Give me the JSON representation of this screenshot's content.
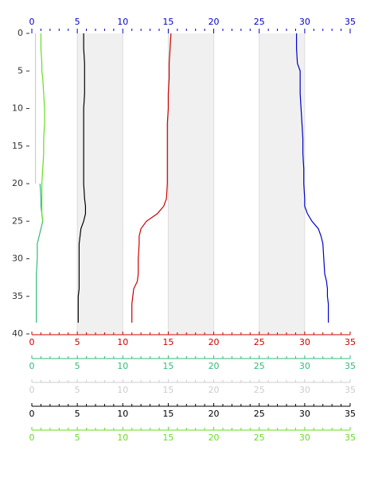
{
  "chart_data": {
    "type": "line",
    "depth": [
      0,
      2,
      4,
      5,
      6,
      8,
      10,
      12,
      14,
      16,
      18,
      20,
      22,
      23,
      24,
      25,
      26,
      27,
      28,
      30,
      32,
      33,
      34,
      35,
      36,
      38.5
    ],
    "ylim": [
      0,
      40
    ],
    "yticks": [
      0,
      5,
      10,
      15,
      20,
      25,
      30,
      35,
      40
    ],
    "y_inverted": true,
    "x_axes": [
      {
        "color": "#0000cc",
        "position": "top",
        "xlim": [
          0,
          35
        ],
        "xticks": [
          0,
          5,
          10,
          15,
          20,
          25,
          30,
          35
        ]
      },
      {
        "color": "#cc0000",
        "position": "bottom",
        "xlim": [
          0,
          35
        ],
        "xticks": [
          0,
          5,
          10,
          15,
          20,
          25,
          30,
          35
        ]
      },
      {
        "color": "#33bb77",
        "position": "bottom",
        "xlim": [
          0,
          35
        ],
        "xticks": [
          0,
          5,
          10,
          15,
          20,
          25,
          30,
          35
        ]
      },
      {
        "color": "#cccccc",
        "position": "bottom",
        "xlim": [
          0,
          35
        ],
        "xticks": [
          0,
          5,
          10,
          15,
          20,
          25,
          30,
          35
        ]
      },
      {
        "color": "#000000",
        "position": "bottom",
        "xlim": [
          0,
          35
        ],
        "xticks": [
          0,
          5,
          10,
          15,
          20,
          25,
          30,
          35
        ]
      },
      {
        "color": "#66dd22",
        "position": "bottom",
        "xlim": [
          0,
          35
        ],
        "xticks": [
          0,
          5,
          10,
          15,
          20,
          25,
          30,
          35
        ]
      }
    ],
    "bands": [
      [
        5,
        10
      ],
      [
        15,
        20
      ],
      [
        25,
        30
      ]
    ],
    "series": [
      {
        "color": "#0000cc",
        "axis": 0,
        "values": [
          29.1,
          29.1,
          29.2,
          29.5,
          29.5,
          29.5,
          29.6,
          29.7,
          29.8,
          29.8,
          29.9,
          29.9,
          30.0,
          30.0,
          30.3,
          30.8,
          31.5,
          31.8,
          32.0,
          32.1,
          32.2,
          32.4,
          32.5,
          32.5,
          32.6,
          32.6
        ]
      },
      {
        "color": "#cc0000",
        "axis": 1,
        "values": [
          15.3,
          15.2,
          15.1,
          15.1,
          15.1,
          15.0,
          15.0,
          14.9,
          14.9,
          14.9,
          14.9,
          14.9,
          14.8,
          14.5,
          13.8,
          12.6,
          12.0,
          11.8,
          11.8,
          11.7,
          11.7,
          11.6,
          11.2,
          11.1,
          11.0,
          11.0
        ]
      },
      {
        "color": "#33bb77",
        "axis": 2,
        "values": [
          null,
          null,
          null,
          null,
          null,
          null,
          null,
          null,
          null,
          null,
          null,
          0.9,
          1.0,
          1.0,
          1.1,
          1.2,
          1.0,
          0.8,
          0.6,
          0.6,
          0.5,
          0.5,
          0.5,
          0.5,
          0.5,
          0.5
        ]
      },
      {
        "color": "#cccccc",
        "axis": 3,
        "values": [
          0.4,
          0.4,
          0.4,
          0.4,
          0.4,
          0.4,
          0.4,
          0.4,
          0.4,
          0.4,
          0.4,
          0.4,
          null,
          null,
          null,
          null,
          null,
          null,
          null,
          null,
          null,
          null,
          null,
          null,
          null,
          null
        ]
      },
      {
        "color": "#000000",
        "axis": 4,
        "values": [
          5.7,
          5.7,
          5.8,
          5.8,
          5.8,
          5.8,
          5.7,
          5.7,
          5.7,
          5.7,
          5.7,
          5.7,
          5.8,
          5.9,
          5.9,
          5.7,
          5.4,
          5.3,
          5.2,
          5.2,
          5.2,
          5.2,
          5.2,
          5.1,
          5.1,
          5.1
        ]
      },
      {
        "color": "#66dd22",
        "axis": 5,
        "values": [
          1.0,
          1.0,
          1.1,
          1.1,
          1.2,
          1.3,
          1.4,
          1.4,
          1.3,
          1.3,
          1.2,
          1.1,
          1.1,
          1.1,
          1.1,
          1.2,
          null,
          null,
          null,
          null,
          null,
          null,
          null,
          null,
          null,
          null
        ]
      }
    ]
  }
}
